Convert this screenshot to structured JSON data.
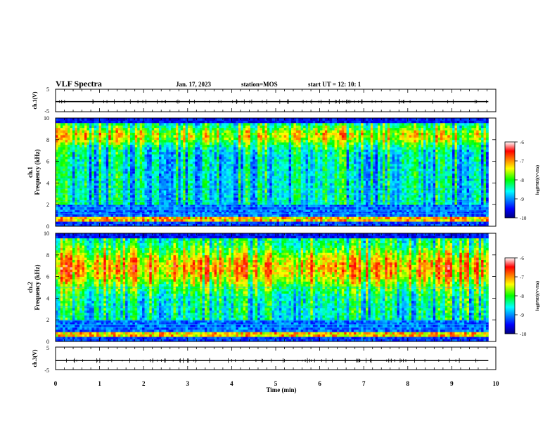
{
  "header": {
    "title": "VLF Spectra",
    "date": "Jan. 17, 2023",
    "station": "station=MOS",
    "start_time": "start UT =  12: 10: 1"
  },
  "chart_data": [
    {
      "type": "line",
      "panel": "waveform-1",
      "ylabel": "ch.1(V)",
      "ylim": [
        -5,
        5
      ],
      "yticks": [
        "5",
        "-5"
      ],
      "x": [
        0,
        10
      ],
      "series": [
        {
          "values": [
            -0.5,
            -0.5
          ]
        }
      ]
    },
    {
      "type": "heatmap",
      "panel": "spectrogram-1",
      "ylabel": "ch.1\nFrequency (kHz)",
      "ylim": [
        0,
        10
      ],
      "yticks": [
        "0",
        "2",
        "4",
        "6",
        "8",
        "10"
      ],
      "colorbar": {
        "label": "log(PSD)(V²/Hz)",
        "ticks": [
          "-6",
          "-7",
          "-8",
          "-9",
          "-10"
        ],
        "range": [
          -10,
          -6
        ]
      }
    },
    {
      "type": "heatmap",
      "panel": "spectrogram-2",
      "ylabel": "ch.2\nFrequency (kHz)",
      "ylim": [
        0,
        10
      ],
      "yticks": [
        "0",
        "2",
        "4",
        "6",
        "8",
        "10"
      ],
      "colorbar": {
        "label": "log(PSD)(V²/Hz)",
        "ticks": [
          "-6",
          "-7",
          "-8",
          "-9",
          "-10"
        ],
        "range": [
          -10,
          -6
        ]
      }
    },
    {
      "type": "line",
      "panel": "waveform-3",
      "ylabel": "ch.3(V)",
      "ylim": [
        -5,
        5
      ],
      "yticks": [
        "5",
        "-5"
      ],
      "x": [
        0,
        10
      ],
      "series": [
        {
          "values": [
            -1.0,
            -1.0
          ]
        }
      ]
    }
  ],
  "xaxis": {
    "label": "Time (min)",
    "ticks": [
      "0",
      "1",
      "2",
      "3",
      "4",
      "5",
      "6",
      "7",
      "8",
      "9",
      "10"
    ],
    "xlim": [
      0,
      10
    ],
    "data_end": 9.83
  }
}
